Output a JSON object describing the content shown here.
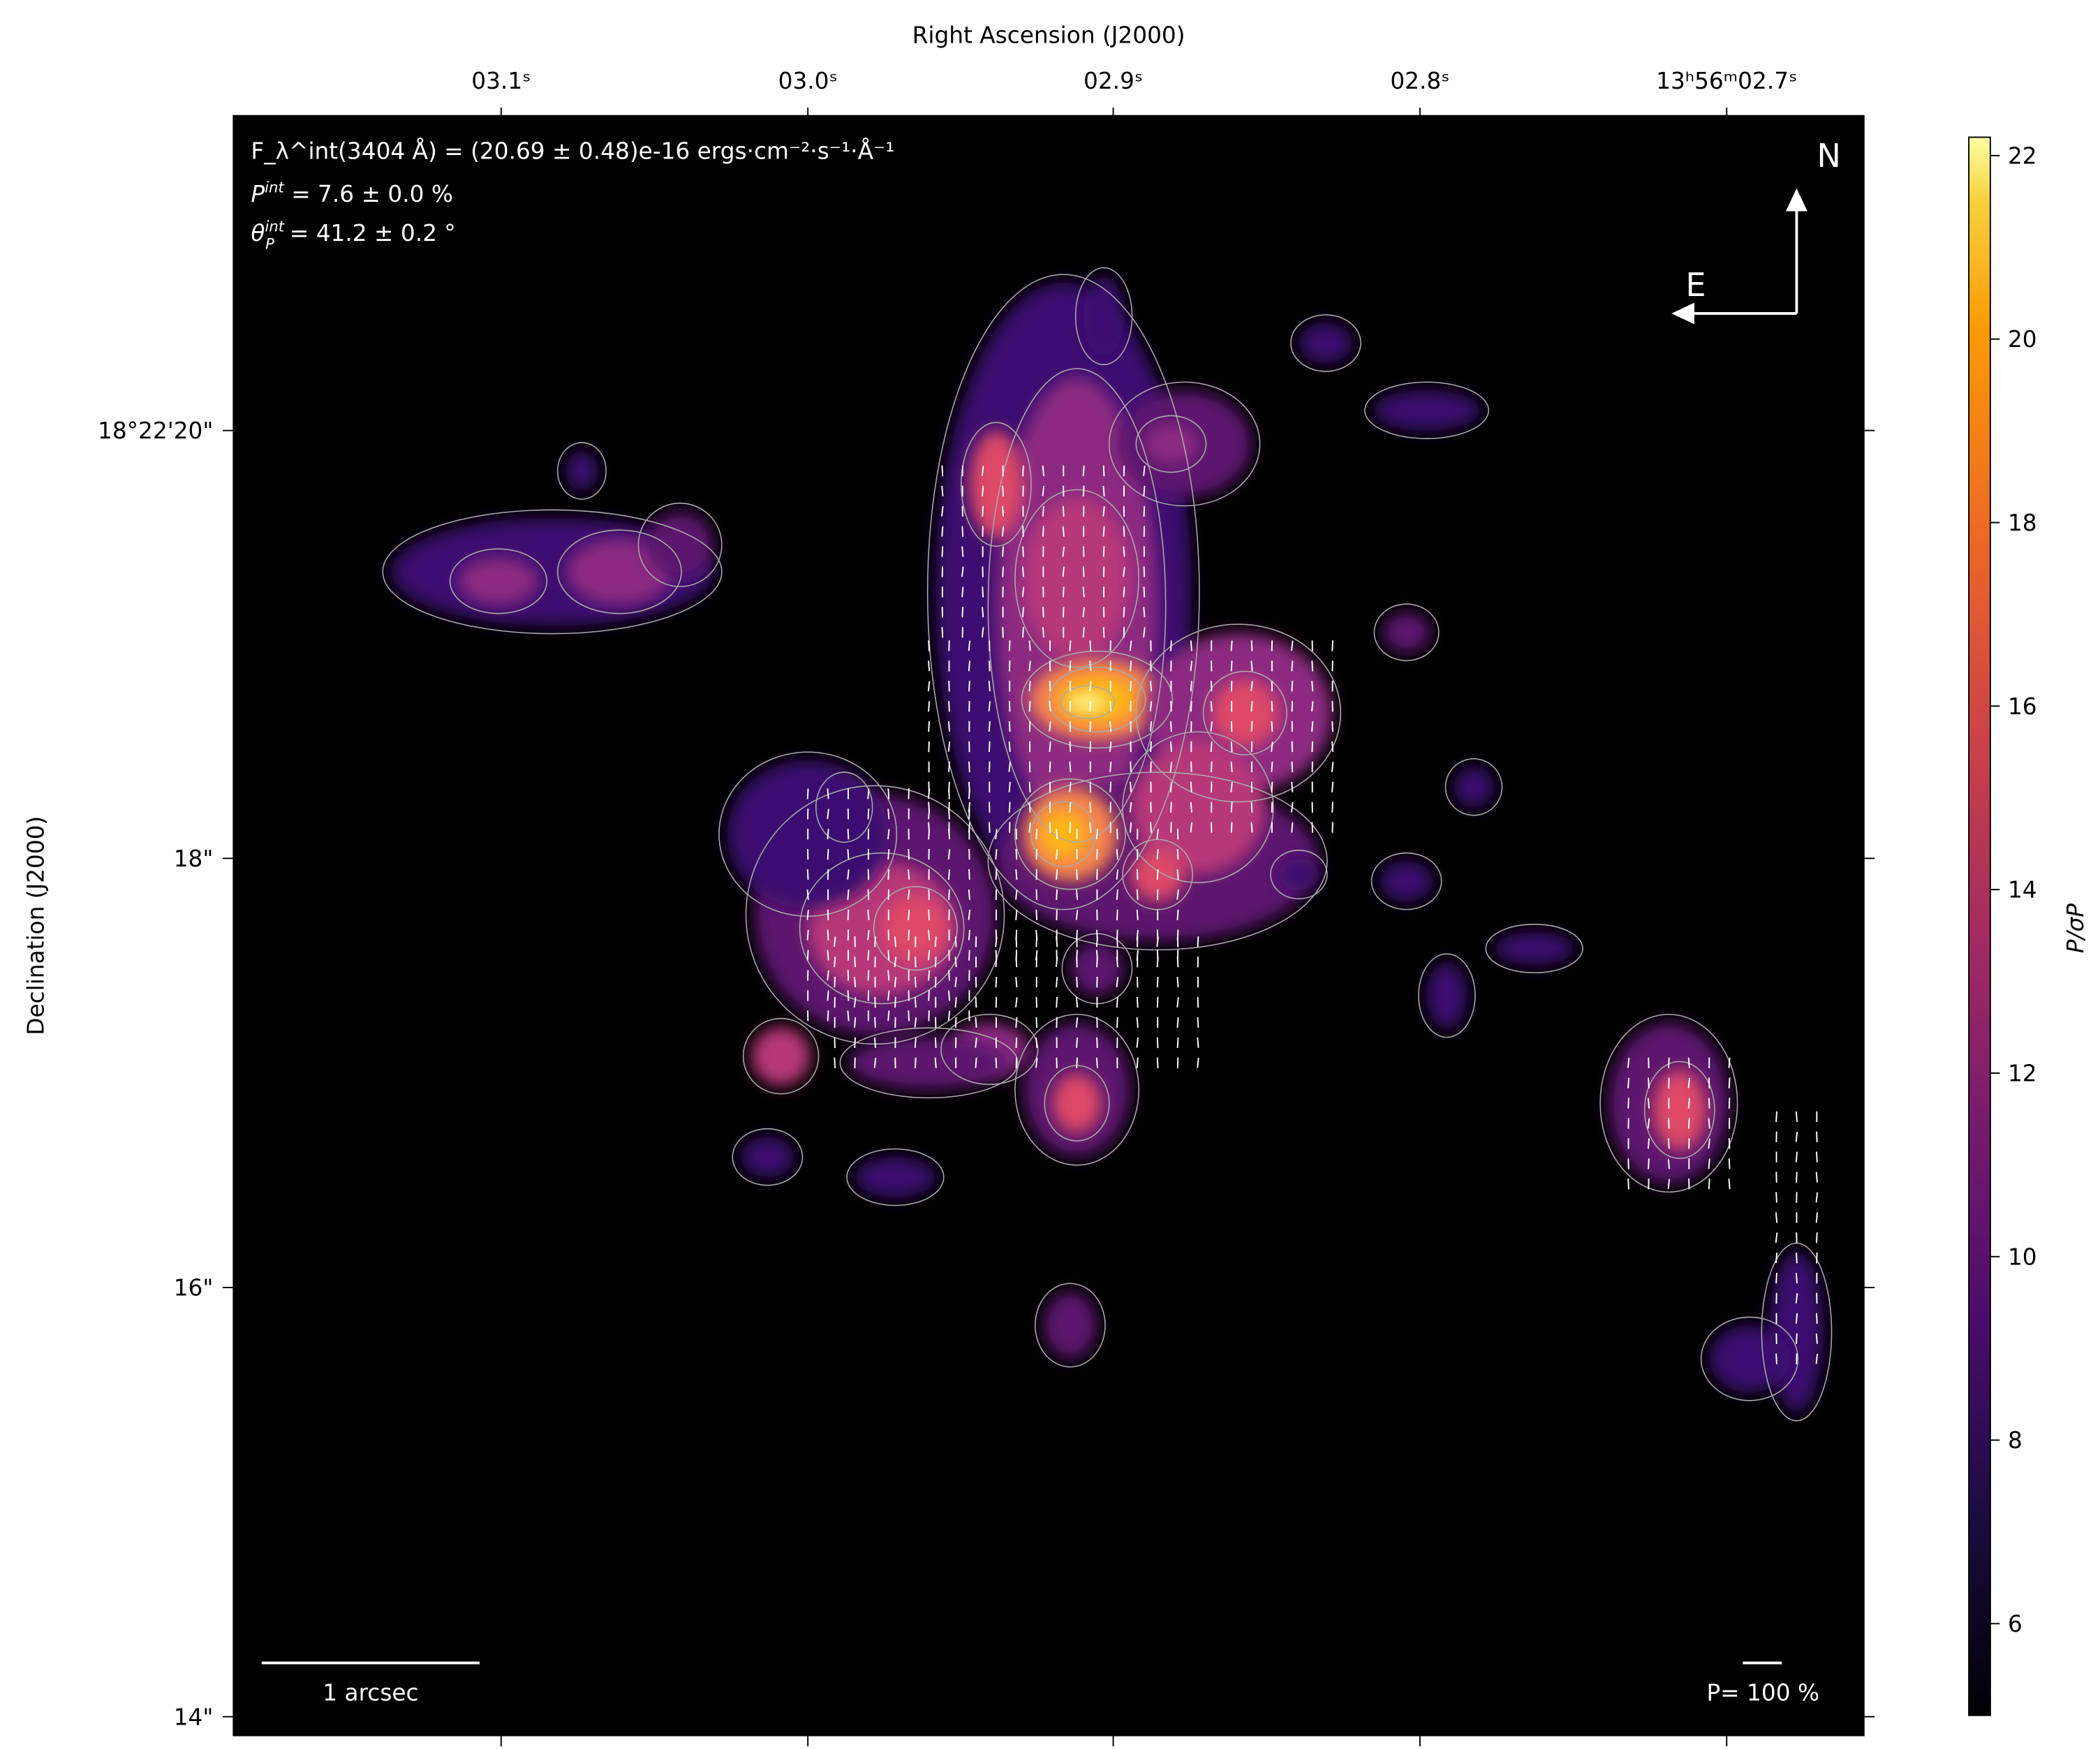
{
  "chart_data": {
    "type": "heatmap",
    "xlabel": "Right Ascension (J2000)",
    "ylabel": "Declination (J2000)",
    "x_ticks": [
      "03.1ˢ",
      "03.0ˢ",
      "02.9ˢ",
      "02.8ˢ",
      "13ʰ56ᵐ02.7ˢ"
    ],
    "y_ticks": [
      "18°22'20\"",
      "18\"",
      "16\"",
      "14\""
    ],
    "colorbar": {
      "label": "P/σP",
      "colormap": "inferno",
      "range": [
        5,
        22.2
      ],
      "ticks": [
        "6",
        "8",
        "10",
        "12",
        "14",
        "16",
        "18",
        "20",
        "22"
      ],
      "tick_values": [
        6,
        8,
        10,
        12,
        14,
        16,
        18,
        20,
        22
      ]
    },
    "annotations": {
      "flux": "F_λ^int(3404 Å) = (20.69 ± 0.48)e-16 ergs·cm⁻²·s⁻¹·Å⁻¹",
      "flux_parts": {
        "sym": "F",
        "sup": "int",
        "sub": "λ",
        "rest": "(3404 Å) = (20.69 ± 0.48)e-16 ",
        "unit": "ergs·cm",
        "e1": "−2",
        "u2": "·s",
        "e2": "−1",
        "u3": "·Å",
        "e3": "−1"
      },
      "pol": {
        "sym": "P",
        "sup": "int",
        "rest": " = 7.6 ± 0.0 %"
      },
      "angle": {
        "sym": "θ",
        "sup": "int",
        "sub": "P",
        "rest": " = 41.2 ± 0.2 °"
      },
      "north": "N",
      "east": "E",
      "scale_bar": "1 arcsec",
      "vector_scale": "P= 100 %"
    },
    "background_color": "#000000",
    "contour_color": "#aaaaaa",
    "vector_color": "#ffffff"
  }
}
